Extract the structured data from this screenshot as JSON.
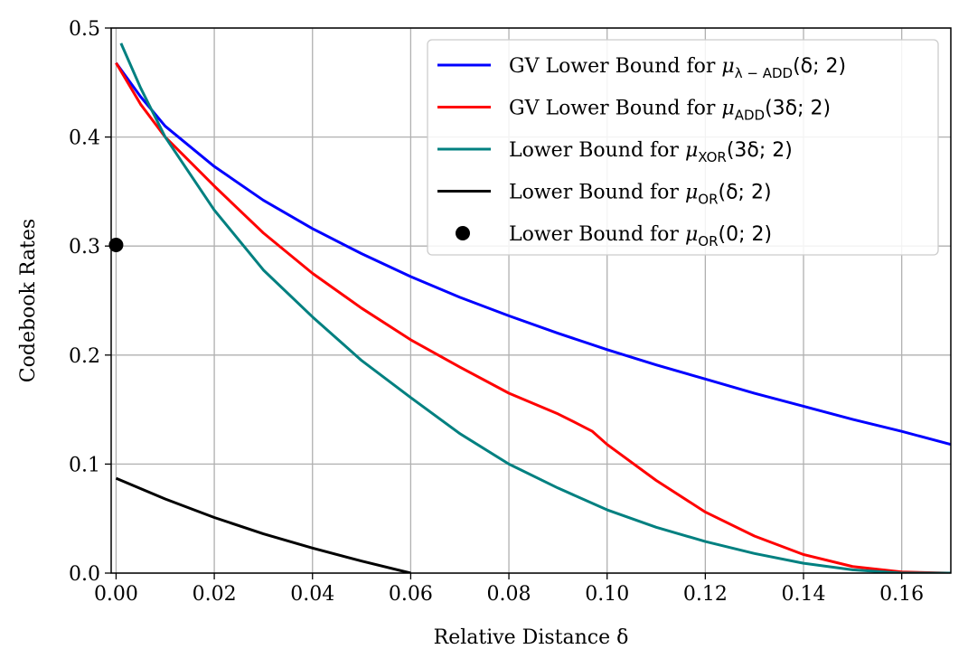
{
  "chart_data": {
    "type": "line",
    "xlabel": "Relative Distance δ",
    "ylabel": "Codebook Rates",
    "xlim": [
      -0.001,
      0.17
    ],
    "ylim": [
      0.0,
      0.5
    ],
    "xticks": [
      0.0,
      0.02,
      0.04,
      0.06,
      0.08,
      0.1,
      0.12,
      0.14,
      0.16
    ],
    "xtick_labels": [
      "0.00",
      "0.02",
      "0.04",
      "0.06",
      "0.08",
      "0.10",
      "0.12",
      "0.14",
      "0.16"
    ],
    "yticks": [
      0.0,
      0.1,
      0.2,
      0.3,
      0.4,
      0.5
    ],
    "ytick_labels": [
      "0.0",
      "0.1",
      "0.2",
      "0.3",
      "0.4",
      "0.5"
    ],
    "grid": true,
    "legend_position": "top-right",
    "series": [
      {
        "name": "GV Lower Bound for μλ−ADD(δ; 2)",
        "legend": {
          "prefix": "GV Lower Bound for ",
          "symbol": "μ",
          "sub": "λ − ADD",
          "arg": "(δ; 2)"
        },
        "color": "#0000ff",
        "kind": "line",
        "x": [
          0.0,
          0.005,
          0.01,
          0.02,
          0.03,
          0.04,
          0.05,
          0.06,
          0.07,
          0.08,
          0.09,
          0.1,
          0.11,
          0.12,
          0.13,
          0.14,
          0.15,
          0.16,
          0.17
        ],
        "y": [
          0.468,
          0.437,
          0.41,
          0.373,
          0.342,
          0.316,
          0.293,
          0.272,
          0.253,
          0.236,
          0.22,
          0.205,
          0.191,
          0.178,
          0.165,
          0.153,
          0.141,
          0.13,
          0.118
        ]
      },
      {
        "name": "GV Lower Bound for μADD(3δ; 2)",
        "legend": {
          "prefix": "GV Lower Bound for ",
          "symbol": "μ",
          "sub": "ADD",
          "arg": "(3δ; 2)"
        },
        "color": "#ff0000",
        "kind": "line",
        "x": [
          0.0,
          0.005,
          0.01,
          0.02,
          0.03,
          0.04,
          0.05,
          0.06,
          0.07,
          0.08,
          0.09,
          0.094,
          0.097,
          0.1,
          0.11,
          0.12,
          0.13,
          0.14,
          0.15,
          0.16,
          0.17
        ],
        "y": [
          0.468,
          0.43,
          0.4,
          0.355,
          0.312,
          0.275,
          0.243,
          0.214,
          0.189,
          0.165,
          0.146,
          0.137,
          0.13,
          0.118,
          0.085,
          0.056,
          0.034,
          0.017,
          0.006,
          0.001,
          0.0
        ]
      },
      {
        "name": "Lower Bound for μXOR(3δ; 2)",
        "legend": {
          "prefix": "Lower Bound for ",
          "symbol": "μ",
          "sub": "XOR",
          "arg": "(3δ; 2)"
        },
        "color": "#008080",
        "kind": "line",
        "x": [
          0.001,
          0.005,
          0.01,
          0.02,
          0.03,
          0.04,
          0.05,
          0.06,
          0.07,
          0.08,
          0.09,
          0.1,
          0.11,
          0.12,
          0.13,
          0.14,
          0.15,
          0.16,
          0.17
        ],
        "y": [
          0.486,
          0.445,
          0.4,
          0.333,
          0.278,
          0.235,
          0.195,
          0.161,
          0.128,
          0.1,
          0.078,
          0.058,
          0.042,
          0.029,
          0.018,
          0.009,
          0.003,
          0.0,
          0.0
        ]
      },
      {
        "name": "Lower Bound for μOR(δ; 2)",
        "legend": {
          "prefix": "Lower Bound for ",
          "symbol": "μ",
          "sub": "OR",
          "arg": "(δ; 2)"
        },
        "color": "#000000",
        "kind": "line",
        "x": [
          0.0,
          0.01,
          0.02,
          0.03,
          0.04,
          0.05,
          0.06
        ],
        "y": [
          0.087,
          0.068,
          0.051,
          0.036,
          0.023,
          0.011,
          0.0
        ]
      },
      {
        "name": "Lower Bound for μOR(0; 2)",
        "legend": {
          "prefix": "Lower Bound for ",
          "symbol": "μ",
          "sub": "OR",
          "arg": "(0; 2)"
        },
        "color": "#000000",
        "kind": "scatter",
        "x": [
          0.0
        ],
        "y": [
          0.301
        ]
      }
    ]
  }
}
